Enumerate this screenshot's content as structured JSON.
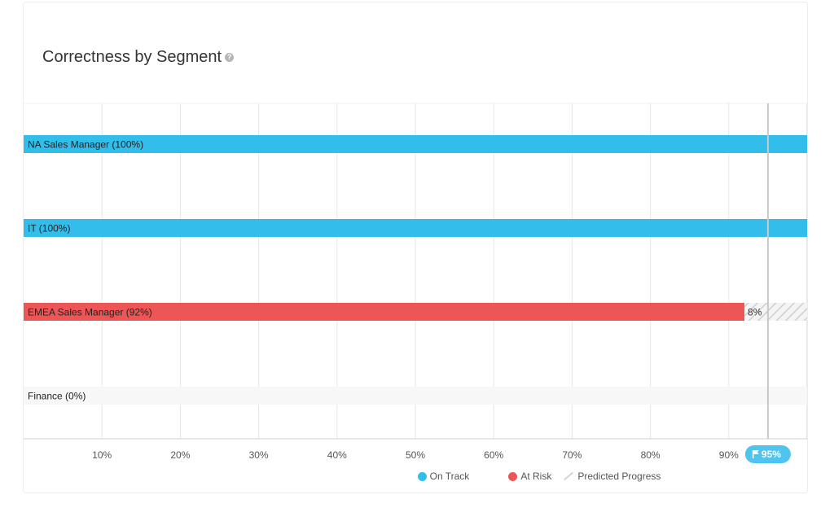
{
  "title": "Correctness by Segment",
  "help_icon": "question-circle-icon",
  "chart_data": {
    "type": "bar",
    "orientation": "horizontal",
    "stacked": true,
    "categories": [
      "NA Sales Manager (100%)",
      "IT (100%)",
      "EMEA Sales Manager (92%)",
      "Finance (0%)"
    ],
    "series": [
      {
        "name": "On Track",
        "color": "#33bdeb",
        "values": [
          100,
          100,
          0,
          0
        ]
      },
      {
        "name": "At Risk",
        "color": "#ec5657",
        "values": [
          0,
          0,
          92,
          0
        ]
      },
      {
        "name": "Predicted Progress",
        "color": "#d4d4d4",
        "values": [
          0,
          0,
          8,
          0
        ]
      }
    ],
    "predicted_labels": [
      "",
      "",
      "8%",
      ""
    ],
    "xlim": [
      0,
      100
    ],
    "xticks": [
      10,
      20,
      30,
      40,
      50,
      60,
      70,
      80,
      90
    ],
    "xtick_labels": [
      "10%",
      "20%",
      "30%",
      "40%",
      "50%",
      "60%",
      "70%",
      "80%",
      "90%"
    ],
    "target": {
      "value": 95,
      "label": "95%",
      "icon": "flag-icon"
    },
    "grid": true,
    "legend_position": "bottom"
  },
  "colors": {
    "on_track": "#33bdeb",
    "at_risk": "#ec5657",
    "predicted": "#d4d4d4",
    "target_badge": "#4ec4ee",
    "empty_track": "#f7f7f7"
  },
  "legend": [
    {
      "label": "On Track",
      "color": "#33bdeb",
      "type": "dot"
    },
    {
      "label": "At Risk",
      "color": "#ec5657",
      "type": "dot"
    },
    {
      "label": "Predicted Progress",
      "color": "#d4d4d4",
      "type": "hatch"
    }
  ]
}
